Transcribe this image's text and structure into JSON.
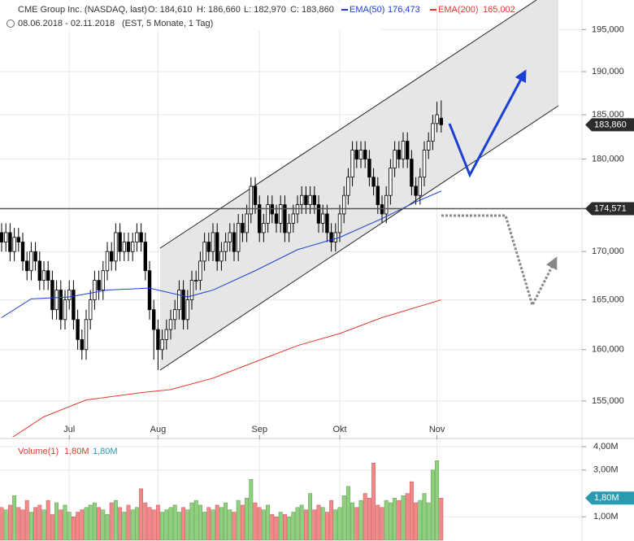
{
  "chart_data": [
    {
      "type": "candlestick",
      "title": "CME Group Inc. (NASDAQ, last)",
      "ohlc_labels": [
        "O: 184,610",
        "H: 186,660",
        "L: 182,970",
        "C: 183,860"
      ],
      "subtitle": "08.06.2018 - 02.11.2018",
      "subtitle_note": "(EST, 5 Monate, 1 Tag)",
      "log_scale": true,
      "grid": true,
      "color_up": "#ffffff",
      "color_down": "#000000",
      "categories": [
        null,
        null,
        null,
        null,
        null,
        null,
        null,
        null,
        null,
        null,
        null,
        null,
        null,
        null,
        null,
        null,
        "Jul",
        null,
        null,
        null,
        null,
        null,
        null,
        null,
        null,
        null,
        null,
        null,
        null,
        null,
        null,
        null,
        null,
        null,
        null,
        null,
        null,
        "Aug",
        null,
        null,
        null,
        null,
        null,
        null,
        null,
        null,
        null,
        null,
        null,
        null,
        null,
        null,
        null,
        null,
        null,
        null,
        null,
        null,
        null,
        null,
        null,
        "Sep",
        null,
        null,
        null,
        null,
        null,
        null,
        null,
        null,
        null,
        null,
        null,
        null,
        null,
        null,
        null,
        null,
        null,
        null,
        "Okt",
        null,
        null,
        null,
        null,
        null,
        null,
        null,
        null,
        null,
        null,
        null,
        null,
        null,
        null,
        null,
        null,
        null,
        null,
        null,
        null,
        null,
        null,
        "Nov",
        null
      ],
      "open": [
        172,
        171,
        172,
        170,
        171.5,
        171,
        169,
        168,
        170,
        169,
        167,
        168,
        167,
        164,
        166,
        163,
        165,
        166,
        163,
        161,
        160,
        163,
        165,
        167,
        166,
        168,
        170,
        169,
        172,
        170,
        171,
        170,
        171,
        172,
        171,
        168,
        164,
        162,
        160,
        161,
        162,
        163,
        164,
        166,
        163,
        165,
        167,
        167,
        169,
        171,
        170,
        172,
        169,
        170,
        171,
        172,
        170,
        173,
        172,
        174,
        177,
        175,
        172,
        173,
        175,
        174,
        173,
        175,
        172,
        173,
        174,
        175,
        176,
        175,
        176,
        175,
        173,
        174,
        172,
        171,
        172,
        174,
        176,
        178,
        181,
        180,
        181,
        180,
        178,
        177,
        175,
        174,
        176,
        179,
        181,
        180,
        182,
        180,
        177,
        176,
        178,
        181,
        182,
        184,
        184.61
      ],
      "high": [
        173,
        173,
        173,
        172.5,
        172.5,
        172,
        170,
        171,
        171,
        170,
        169,
        169,
        168,
        167,
        167,
        166,
        167,
        167,
        164,
        162,
        164,
        166,
        168,
        168,
        169,
        171,
        171,
        173,
        173,
        172,
        172,
        172,
        173,
        173,
        172,
        169,
        165,
        163,
        162,
        163,
        164,
        165,
        167,
        167,
        166,
        168,
        168,
        170,
        172,
        172,
        173,
        173,
        171,
        172,
        173,
        173,
        174,
        174,
        175,
        178,
        178,
        176,
        174,
        176,
        176,
        175,
        176,
        176,
        174,
        175,
        176,
        177,
        177,
        177,
        177,
        176,
        175,
        175,
        173,
        173,
        175,
        177,
        179,
        182,
        182,
        182,
        182,
        181,
        179,
        178,
        176,
        177,
        180,
        182,
        182,
        183,
        183,
        181,
        178,
        179,
        182,
        183,
        185,
        186.5,
        186.66
      ],
      "low": [
        170,
        170,
        169,
        169,
        170,
        168,
        167,
        167,
        168,
        166,
        166,
        166,
        163,
        163,
        162,
        162,
        164,
        162,
        160,
        159,
        159,
        162,
        164,
        165,
        165,
        167,
        168,
        168,
        169,
        169,
        169,
        169,
        170,
        170,
        167,
        163,
        159,
        158,
        159,
        160,
        161,
        162,
        163,
        162,
        162,
        164,
        166,
        166,
        168,
        169,
        169,
        168,
        168,
        169,
        170,
        169,
        169,
        171,
        171,
        173,
        174,
        171,
        171,
        172,
        173,
        172,
        172,
        171,
        171,
        172,
        173,
        174,
        174,
        174,
        174,
        172,
        172,
        171,
        170,
        170,
        171,
        173,
        175,
        177,
        179,
        179,
        179,
        177,
        176,
        174,
        173,
        173,
        175,
        178,
        179,
        179,
        179,
        176,
        175,
        175,
        177,
        180,
        181,
        183,
        182.97
      ],
      "close": [
        171,
        172,
        170,
        171.5,
        171,
        169,
        168,
        170,
        169,
        167,
        168,
        167,
        164,
        166,
        163,
        165,
        166,
        163,
        161,
        160,
        163,
        165,
        167,
        166,
        168,
        170,
        169,
        172,
        170,
        171,
        170,
        171,
        172,
        171,
        168,
        164,
        162,
        160,
        161,
        162,
        163,
        164,
        166,
        163,
        165,
        167,
        167,
        169,
        171,
        170,
        172,
        169,
        170,
        171,
        172,
        170,
        173,
        172,
        174,
        177,
        175,
        172,
        173,
        175,
        174,
        173,
        175,
        172,
        173,
        174,
        175,
        176,
        175,
        176,
        175,
        173,
        174,
        172,
        171,
        172,
        174,
        176,
        178,
        181,
        180,
        181,
        180,
        178,
        177,
        175,
        174,
        176,
        179,
        181,
        180,
        182,
        180,
        177,
        176,
        178,
        181,
        182,
        184,
        185,
        183.86
      ],
      "lines": [
        {
          "name": "EMA(50)",
          "color": "#1a3fd6",
          "value_label": "176,473",
          "x": [
            0,
            7,
            16,
            25,
            35,
            44,
            50,
            60,
            70,
            80,
            90,
            98,
            104
          ],
          "values": [
            163.2,
            165.1,
            165.3,
            166.0,
            166.2,
            165.3,
            166.0,
            168.0,
            170.2,
            171.5,
            173.5,
            175.3,
            176.473
          ]
        },
        {
          "name": "EMA(200)",
          "color": "#e03a2e",
          "value_label": "165,002",
          "x": [
            0,
            10,
            20,
            33,
            40,
            50,
            60,
            70,
            80,
            90,
            104
          ],
          "values": [
            150.9,
            153.5,
            155.1,
            155.8,
            156.1,
            157.2,
            158.8,
            160.4,
            161.6,
            163.2,
            165.002
          ]
        }
      ],
      "price_tags": [
        {
          "value": 183.86,
          "label": "183,860"
        },
        {
          "value": 174.571,
          "label": "174,571"
        }
      ],
      "ylim": [
        151.6,
        198.6
      ],
      "yticks": [
        {
          "value": 155,
          "label": "155,000"
        },
        {
          "value": 160,
          "label": "160,000"
        },
        {
          "value": 165,
          "label": "165,000"
        },
        {
          "value": 170,
          "label": "170,000"
        },
        {
          "value": 180,
          "label": "180,000"
        },
        {
          "value": 185,
          "label": "185,000"
        },
        {
          "value": 190,
          "label": "190,000"
        },
        {
          "value": 195,
          "label": "195,000"
        }
      ]
    },
    {
      "type": "bar",
      "title": "Volume(1)",
      "value_labels_header": [
        "1,80M",
        "1,80M"
      ],
      "color_up": "#8fd07f",
      "color_down": "#f08a8a",
      "values": [
        1.4,
        1.3,
        1.5,
        1.9,
        1.4,
        1.3,
        1.7,
        1.2,
        1.4,
        1.5,
        1.3,
        1.7,
        1.1,
        1.6,
        1.3,
        1.5,
        1.2,
        1.0,
        1.2,
        1.3,
        1.4,
        1.5,
        1.6,
        1.4,
        1.3,
        1.1,
        1.6,
        1.7,
        1.4,
        1.2,
        1.5,
        1.3,
        1.4,
        2.2,
        1.6,
        1.4,
        1.3,
        1.5,
        1.2,
        1.3,
        1.4,
        1.5,
        1.2,
        1.4,
        1.3,
        1.6,
        1.7,
        1.5,
        1.2,
        1.4,
        1.3,
        1.5,
        1.4,
        1.6,
        1.3,
        1.2,
        1.7,
        1.5,
        1.8,
        2.6,
        1.6,
        1.4,
        1.3,
        1.5,
        1.1,
        1.0,
        1.2,
        1.1,
        1.0,
        1.2,
        1.4,
        1.5,
        1.3,
        2.0,
        1.3,
        1.5,
        1.4,
        1.2,
        1.7,
        1.3,
        1.4,
        1.9,
        2.3,
        1.6,
        1.4,
        1.7,
        2.0,
        1.8,
        3.3,
        1.5,
        1.4,
        1.7,
        1.6,
        1.8,
        1.7,
        1.9,
        2.0,
        2.5,
        1.6,
        1.7,
        2.0,
        1.6,
        3.0,
        3.4,
        1.8
      ],
      "tag": {
        "value": 1.8,
        "label": "1,80M"
      },
      "ylim": [
        0,
        4.28
      ],
      "yticks": [
        {
          "value": 1,
          "label": "1,00M"
        },
        {
          "value": 3,
          "label": "3,00M"
        },
        {
          "value": 4,
          "label": "4,00M"
        }
      ]
    }
  ]
}
